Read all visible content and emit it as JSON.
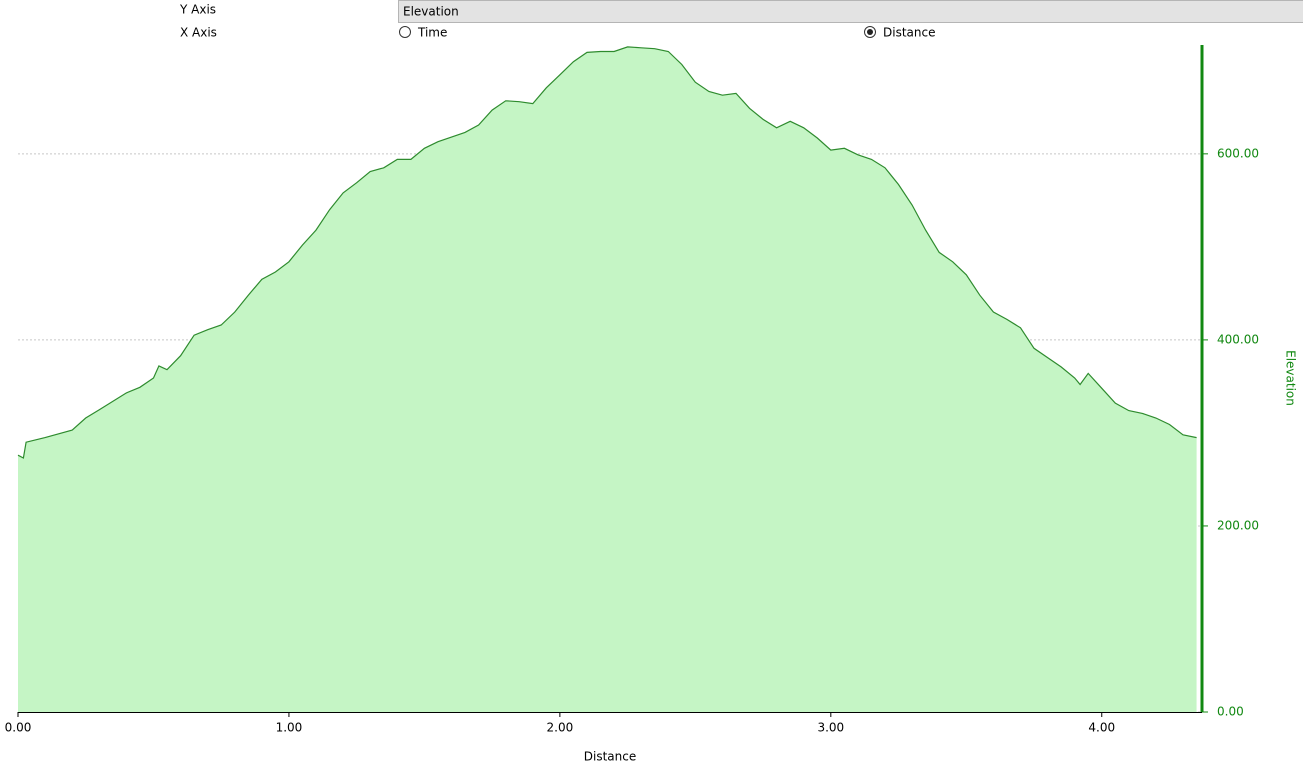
{
  "controls": {
    "y_axis_label": "Y Axis",
    "y_axis_value": "Elevation",
    "x_axis_label": "X Axis",
    "x_axis_options": [
      {
        "label": "Time",
        "selected": false
      },
      {
        "label": "Distance",
        "selected": true
      }
    ]
  },
  "chart_data": {
    "type": "area",
    "x_label": "Distance",
    "y_label": "Elevation",
    "color": "#2e8b2e",
    "fill": "#c5f5c5",
    "axis_color": "#118811",
    "grid": true,
    "x": [
      0,
      0.02,
      0.03,
      0.1,
      0.2,
      0.25,
      0.3,
      0.4,
      0.45,
      0.5,
      0.52,
      0.55,
      0.6,
      0.65,
      0.7,
      0.75,
      0.8,
      0.85,
      0.9,
      0.95,
      1.0,
      1.05,
      1.1,
      1.15,
      1.2,
      1.25,
      1.3,
      1.35,
      1.4,
      1.45,
      1.5,
      1.55,
      1.6,
      1.65,
      1.7,
      1.75,
      1.8,
      1.85,
      1.9,
      1.95,
      2.0,
      2.05,
      2.1,
      2.15,
      2.2,
      2.25,
      2.3,
      2.35,
      2.4,
      2.45,
      2.5,
      2.55,
      2.6,
      2.65,
      2.7,
      2.75,
      2.8,
      2.85,
      2.9,
      2.95,
      3.0,
      3.05,
      3.1,
      3.15,
      3.2,
      3.25,
      3.3,
      3.35,
      3.4,
      3.45,
      3.5,
      3.55,
      3.6,
      3.65,
      3.7,
      3.75,
      3.8,
      3.85,
      3.9,
      3.92,
      3.95,
      4.0,
      4.05,
      4.1,
      4.15,
      4.2,
      4.25,
      4.3,
      4.35
    ],
    "values": [
      276,
      273,
      290,
      295,
      303,
      316,
      325,
      343,
      349,
      359,
      372,
      368,
      383,
      405,
      411,
      416,
      430,
      448,
      465,
      473,
      484,
      502,
      518,
      540,
      558,
      569,
      581,
      585,
      594,
      594,
      606,
      613,
      618,
      623,
      631,
      647,
      657,
      656,
      654,
      671,
      685,
      699,
      709,
      710,
      710,
      715,
      714,
      713,
      710,
      696,
      677,
      667,
      663,
      665,
      649,
      637,
      628,
      635,
      628,
      617,
      604,
      606,
      599,
      594,
      585,
      567,
      545,
      518,
      494,
      484,
      470,
      448,
      430,
      422,
      413,
      391,
      381,
      371,
      359,
      352,
      364,
      348,
      332,
      324,
      321,
      316,
      309,
      298,
      295
    ],
    "xlim": [
      0,
      4.37
    ],
    "ylim": [
      0,
      717
    ],
    "xticks": [
      {
        "value": 0,
        "label": "0.00"
      },
      {
        "value": 1,
        "label": "1.00"
      },
      {
        "value": 2,
        "label": "2.00"
      },
      {
        "value": 3,
        "label": "3.00"
      },
      {
        "value": 4,
        "label": "4.00"
      }
    ],
    "yticks": [
      {
        "value": 0,
        "label": "0.00"
      },
      {
        "value": 200,
        "label": "200.00"
      },
      {
        "value": 400,
        "label": "400.00"
      },
      {
        "value": 600,
        "label": "600.00"
      }
    ]
  }
}
